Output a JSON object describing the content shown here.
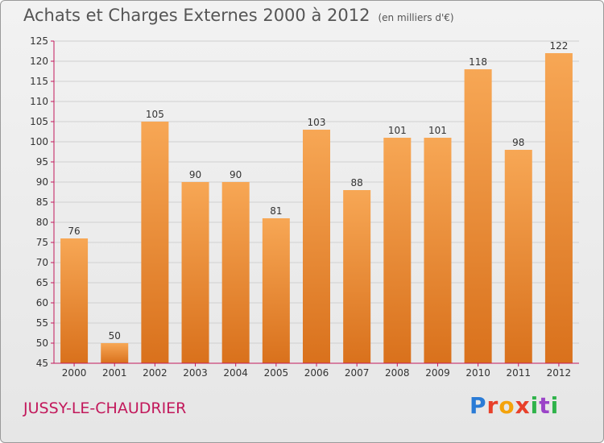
{
  "header": {
    "title": "Achats et Charges Externes 2000 à 2012",
    "unit": "(en milliers d'€)"
  },
  "footer": {
    "commune": "JUSSY-LE-CHAUDRIER",
    "logo_text": "Proxiti"
  },
  "colors": {
    "bar_top": "#f7a755",
    "bar_bottom": "#d9711c",
    "axis": "#c2185b",
    "text": "#555555"
  },
  "chart_data": {
    "type": "bar",
    "title": "Achats et Charges Externes 2000 à 2012",
    "subtitle": "(en milliers d'€)",
    "categories": [
      "2000",
      "2001",
      "2002",
      "2003",
      "2004",
      "2005",
      "2006",
      "2007",
      "2008",
      "2009",
      "2010",
      "2011",
      "2012"
    ],
    "values": [
      76,
      50,
      105,
      90,
      90,
      81,
      103,
      88,
      101,
      101,
      118,
      98,
      122
    ],
    "ylim": [
      45,
      125
    ],
    "yticks": [
      45,
      50,
      55,
      60,
      65,
      70,
      75,
      80,
      85,
      90,
      95,
      100,
      105,
      110,
      115,
      120,
      125
    ],
    "grid": true,
    "data_labels": true
  }
}
